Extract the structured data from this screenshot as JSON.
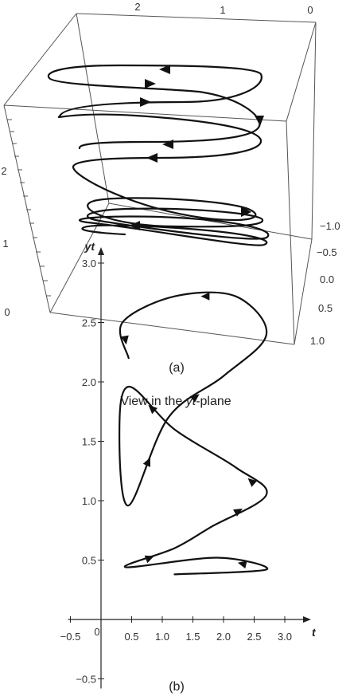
{
  "figure_a": {
    "caption": "(a)",
    "top_axis_ticks": [
      "2",
      "1",
      "0"
    ],
    "left_axis_ticks": [
      "0",
      "1",
      "2"
    ],
    "right_axis_ticks": [
      "−1.0",
      "−0.5",
      "0.0",
      "0.5",
      "1.0"
    ]
  },
  "figure_b": {
    "caption": "(b)",
    "title_prefix": "View in the ",
    "title_italic": "yt",
    "title_suffix": "-plane"
  },
  "chart_data": [
    {
      "type": "line",
      "title": "",
      "description_3d": "helical space curve",
      "top_axis": {
        "ticks": [
          2,
          1,
          0
        ]
      },
      "vertical_axis": {
        "ticks": [
          0,
          1,
          2
        ]
      },
      "depth_axis": {
        "ticks": [
          -1.0,
          -0.5,
          0.0,
          0.5,
          1.0
        ]
      },
      "series": [
        {
          "x": [
            0.4,
            2.7,
            0.4,
            2.7,
            0.4,
            2.7,
            0.4,
            2.7
          ],
          "y": [
            0.4,
            0.6,
            1.0,
            1.4,
            1.6,
            2.0,
            2.3,
            2.7
          ]
        }
      ]
    },
    {
      "type": "line",
      "title": "View in the yt-plane",
      "xlabel": "t",
      "ylabel": "yt",
      "xlim": [
        -0.5,
        3.0
      ],
      "ylim": [
        -0.5,
        3.0
      ],
      "x_ticks": [
        -0.5,
        0,
        0.5,
        1.0,
        1.5,
        2.0,
        2.5,
        3.0
      ],
      "x_tick_labels": [
        "−0.5",
        "0",
        "0.5",
        "1.0",
        "1.5",
        "2.0",
        "2.5",
        "3.0"
      ],
      "y_ticks": [
        -0.5,
        0.5,
        1.0,
        1.5,
        2.0,
        2.5,
        3.0
      ],
      "y_tick_labels": [
        "−0.5",
        "0.5",
        "1.0",
        "1.5",
        "2.0",
        "2.5",
        "3.0"
      ],
      "series": [
        {
          "points": [
            [
              1.2,
              0.38
            ],
            [
              2.7,
              0.42
            ],
            [
              1.9,
              0.52
            ],
            [
              0.4,
              0.44
            ],
            [
              1.2,
              0.6
            ],
            [
              1.8,
              0.78
            ],
            [
              2.7,
              1.05
            ],
            [
              2.2,
              1.28
            ],
            [
              1.2,
              1.6
            ],
            [
              0.45,
              1.96
            ],
            [
              0.3,
              1.55
            ],
            [
              0.45,
              0.96
            ],
            [
              1.1,
              1.7
            ],
            [
              2.0,
              2.05
            ],
            [
              2.7,
              2.4
            ],
            [
              2.2,
              2.72
            ],
            [
              1.2,
              2.72
            ],
            [
              0.35,
              2.5
            ],
            [
              0.45,
              2.2
            ]
          ]
        }
      ]
    }
  ]
}
